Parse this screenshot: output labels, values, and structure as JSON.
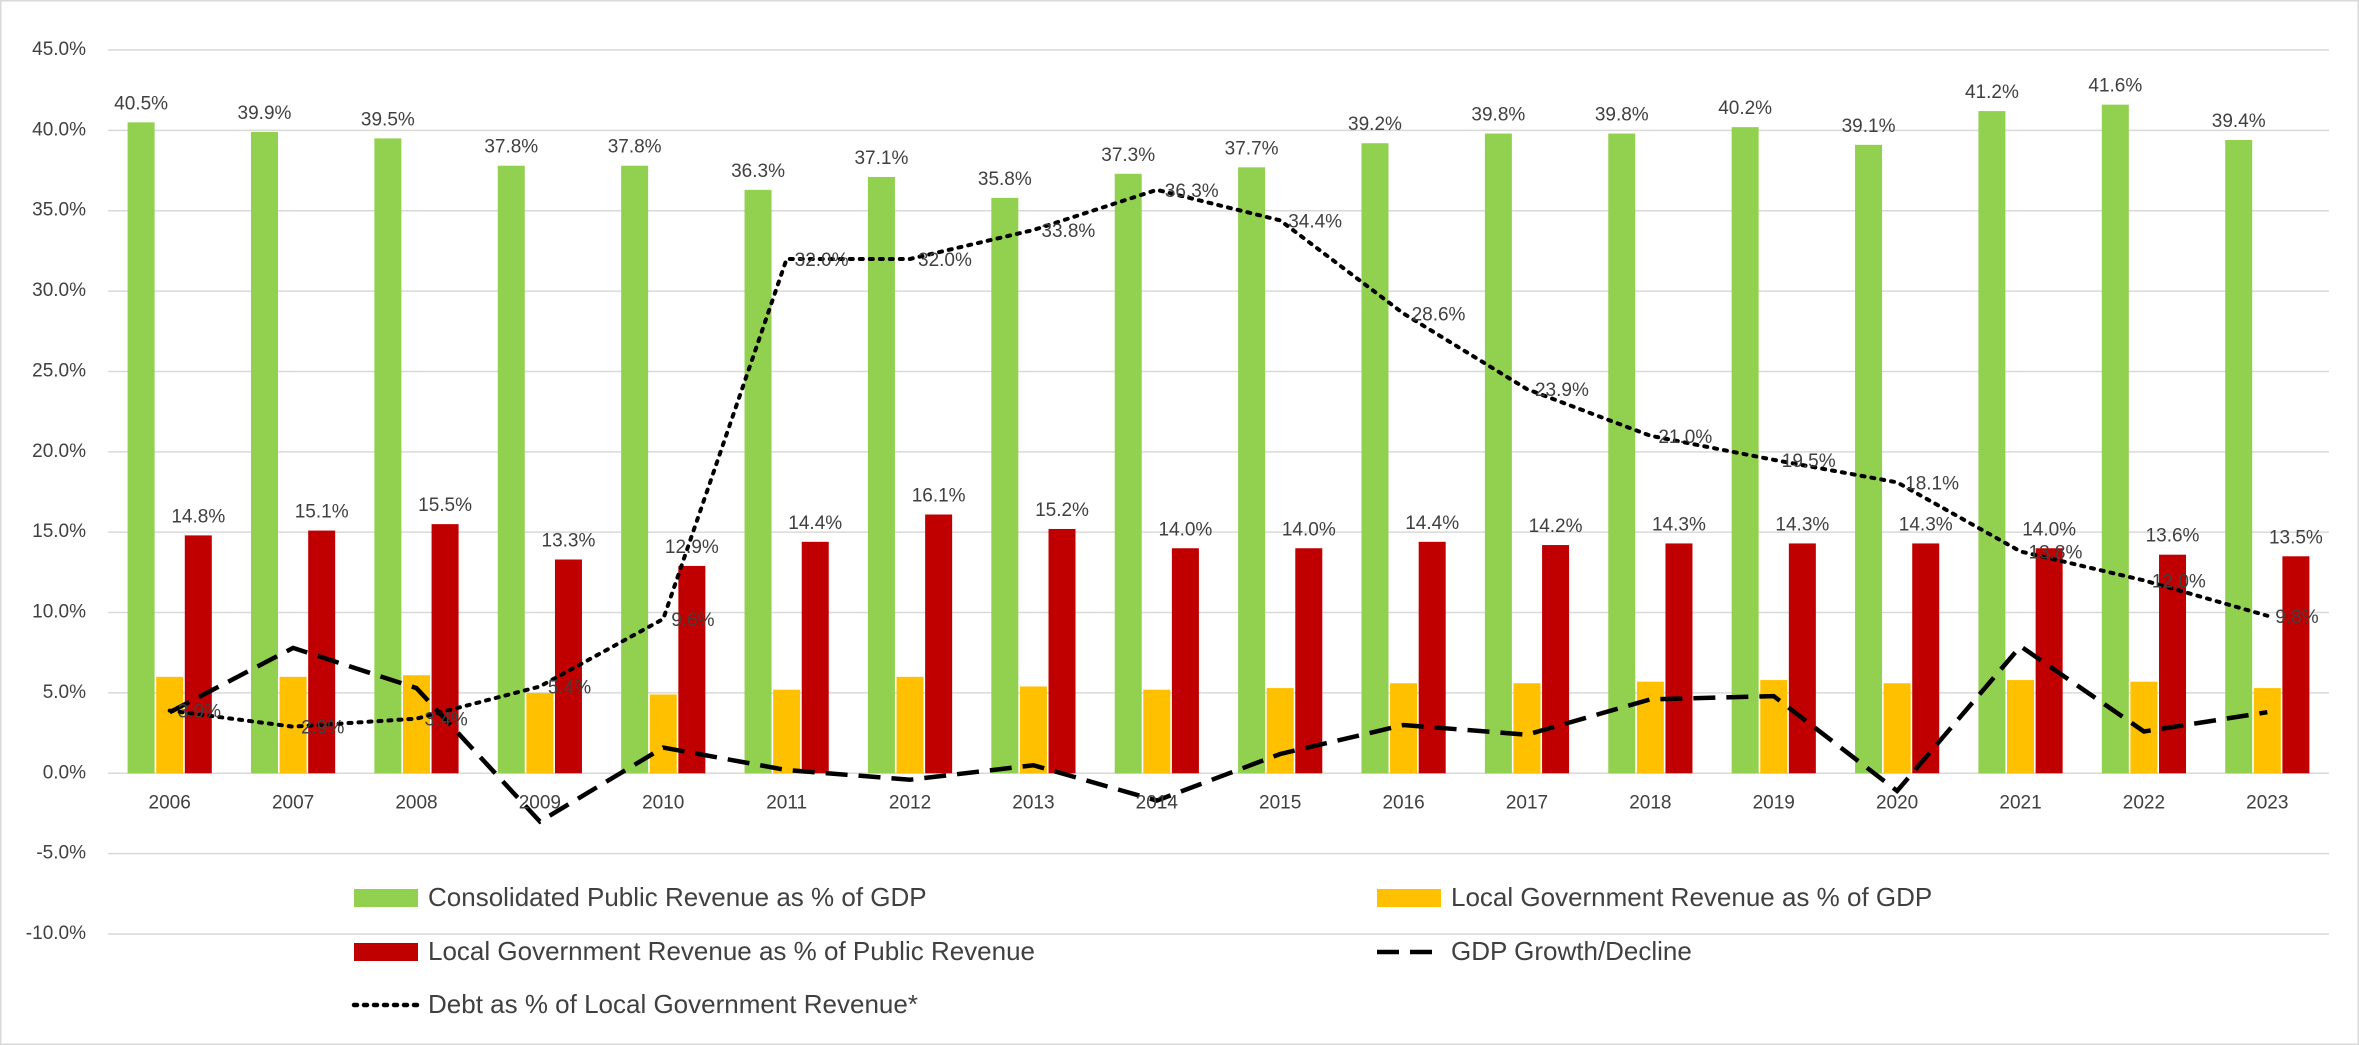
{
  "chart_data": {
    "type": "combo",
    "categories": [
      "2006",
      "2007",
      "2008",
      "2009",
      "2010",
      "2011",
      "2012",
      "2013",
      "2014",
      "2015",
      "2016",
      "2017",
      "2018",
      "2019",
      "2020",
      "2021",
      "2022",
      "2023"
    ],
    "ylim": [
      -10,
      45
    ],
    "yticks": [
      {
        "value": -10,
        "label": "-10.0%"
      },
      {
        "value": -5,
        "label": "-5.0%"
      },
      {
        "value": 0,
        "label": "0.0%"
      },
      {
        "value": 5,
        "label": "5.0%"
      },
      {
        "value": 10,
        "label": "10.0%"
      },
      {
        "value": 15,
        "label": "15.0%"
      },
      {
        "value": 20,
        "label": "20.0%"
      },
      {
        "value": 25,
        "label": "25.0%"
      },
      {
        "value": 30,
        "label": "30.0%"
      },
      {
        "value": 35,
        "label": "35.0%"
      },
      {
        "value": 40,
        "label": "40.0%"
      },
      {
        "value": 45,
        "label": "45.0%"
      }
    ],
    "grid": true,
    "legend": "bottom",
    "series": [
      {
        "name": "Consolidated Public Revenue as % of GDP",
        "type": "bar",
        "color": "#92d050",
        "values": [
          40.5,
          39.9,
          39.5,
          37.8,
          37.8,
          36.3,
          37.1,
          35.8,
          37.3,
          37.7,
          39.2,
          39.8,
          39.8,
          40.2,
          39.1,
          41.2,
          41.6,
          39.4
        ],
        "value_labels": [
          "40.5%",
          "39.9%",
          "39.5%",
          "37.8%",
          "37.8%",
          "36.3%",
          "37.1%",
          "35.8%",
          "37.3%",
          "37.7%",
          "39.2%",
          "39.8%",
          "39.8%",
          "40.2%",
          "39.1%",
          "41.2%",
          "41.6%",
          "39.4%"
        ]
      },
      {
        "name": "Local Government Revenue as % of GDP",
        "type": "bar",
        "color": "#ffc000",
        "values": [
          6.0,
          6.0,
          6.1,
          5.0,
          4.9,
          5.2,
          6.0,
          5.4,
          5.2,
          5.3,
          5.6,
          5.6,
          5.7,
          5.8,
          5.6,
          5.8,
          5.7,
          5.3
        ]
      },
      {
        "name": "Local Government Revenue as % of Public Revenue",
        "type": "bar",
        "color": "#c00000",
        "values": [
          14.8,
          15.1,
          15.5,
          13.3,
          12.9,
          14.4,
          16.1,
          15.2,
          14.0,
          14.0,
          14.4,
          14.2,
          14.3,
          14.3,
          14.3,
          14.0,
          13.6,
          13.5
        ],
        "value_labels": [
          "14.8%",
          "15.1%",
          "15.5%",
          "13.3%",
          "12.9%",
          "14.4%",
          "16.1%",
          "15.2%",
          "14.0%",
          "14.0%",
          "14.4%",
          "14.2%",
          "14.3%",
          "14.3%",
          "14.3%",
          "14.0%",
          "13.6%",
          "13.5%"
        ]
      },
      {
        "name": "GDP Growth/Decline",
        "type": "line",
        "style": "dashed",
        "color": "#000000",
        "values": [
          3.8,
          7.8,
          5.3,
          -3.0,
          1.6,
          0.2,
          -0.4,
          0.5,
          -1.7,
          1.2,
          3.0,
          2.4,
          4.6,
          4.8,
          -1.1,
          7.9,
          2.6,
          3.8
        ]
      },
      {
        "name": "Debt as % of Local Government Revenue*",
        "type": "line",
        "style": "dotted",
        "color": "#000000",
        "values": [
          3.9,
          2.9,
          3.4,
          5.4,
          9.6,
          32.0,
          32.0,
          33.8,
          36.3,
          34.4,
          28.6,
          23.9,
          21.0,
          19.5,
          18.1,
          13.8,
          12.0,
          9.8
        ],
        "value_labels": [
          "3.9%",
          "2.9%",
          "3.4%",
          "5.4%",
          "9.6%",
          "32.0%",
          "32.0%",
          "33.8%",
          "36.3%",
          "34.4%",
          "28.6%",
          "23.9%",
          "21.0%",
          "19.5%",
          "18.1%",
          "13.8%",
          "12.0%",
          "9.8%"
        ]
      }
    ]
  }
}
